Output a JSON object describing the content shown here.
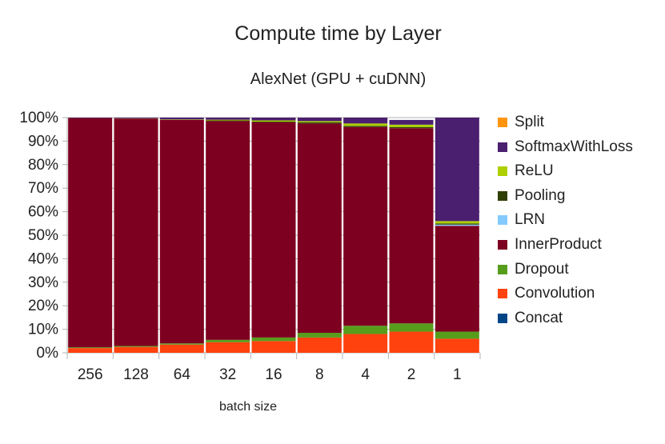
{
  "chart_data": {
    "type": "bar",
    "stacked": true,
    "normalized": true,
    "title": "Compute time by Layer",
    "subtitle": "AlexNet (GPU + cuDNN)",
    "xlabel": "batch size",
    "ylabel": "",
    "ylim": [
      0,
      100
    ],
    "yticks": [
      "0%",
      "10%",
      "20%",
      "30%",
      "40%",
      "50%",
      "60%",
      "70%",
      "80%",
      "90%",
      "100%"
    ],
    "grid": true,
    "legend_position": "right",
    "categories": [
      "256",
      "128",
      "64",
      "32",
      "16",
      "8",
      "4",
      "2",
      "1"
    ],
    "series": [
      {
        "name": "Concat",
        "color": "#004586",
        "values": [
          0,
          0,
          0,
          0,
          0,
          0,
          0,
          0,
          0
        ]
      },
      {
        "name": "Convolution",
        "color": "#ff420e",
        "values": [
          2,
          2.5,
          3.5,
          4.5,
          5,
          6.5,
          8,
          9,
          6
        ]
      },
      {
        "name": "Dropout",
        "color": "#579d1c",
        "values": [
          0.3,
          0.4,
          0.5,
          1,
          1.5,
          2,
          3.5,
          3.5,
          3
        ]
      },
      {
        "name": "InnerProduct",
        "color": "#7e0021",
        "values": [
          97.5,
          96.7,
          95,
          93,
          91.5,
          89,
          84.5,
          83,
          45
        ]
      },
      {
        "name": "LRN",
        "color": "#83caff",
        "values": [
          0,
          0,
          0,
          0,
          0,
          0,
          0,
          0,
          0.5
        ]
      },
      {
        "name": "Pooling",
        "color": "#314004",
        "values": [
          0,
          0,
          0,
          0.3,
          0.3,
          0.5,
          0.5,
          0.5,
          0.5
        ]
      },
      {
        "name": "ReLU",
        "color": "#aecf00",
        "values": [
          0,
          0.1,
          0.2,
          0.3,
          0.5,
          0.5,
          1,
          1,
          1
        ]
      },
      {
        "name": "SoftmaxWithLoss",
        "color": "#4b1f6f",
        "values": [
          0.2,
          0.3,
          0.8,
          0.9,
          1.2,
          1.5,
          2.5,
          2,
          44
        ]
      },
      {
        "name": "Split",
        "color": "#ff950e",
        "values": [
          0,
          0,
          0,
          0,
          0,
          0,
          0,
          0,
          0
        ]
      }
    ]
  }
}
